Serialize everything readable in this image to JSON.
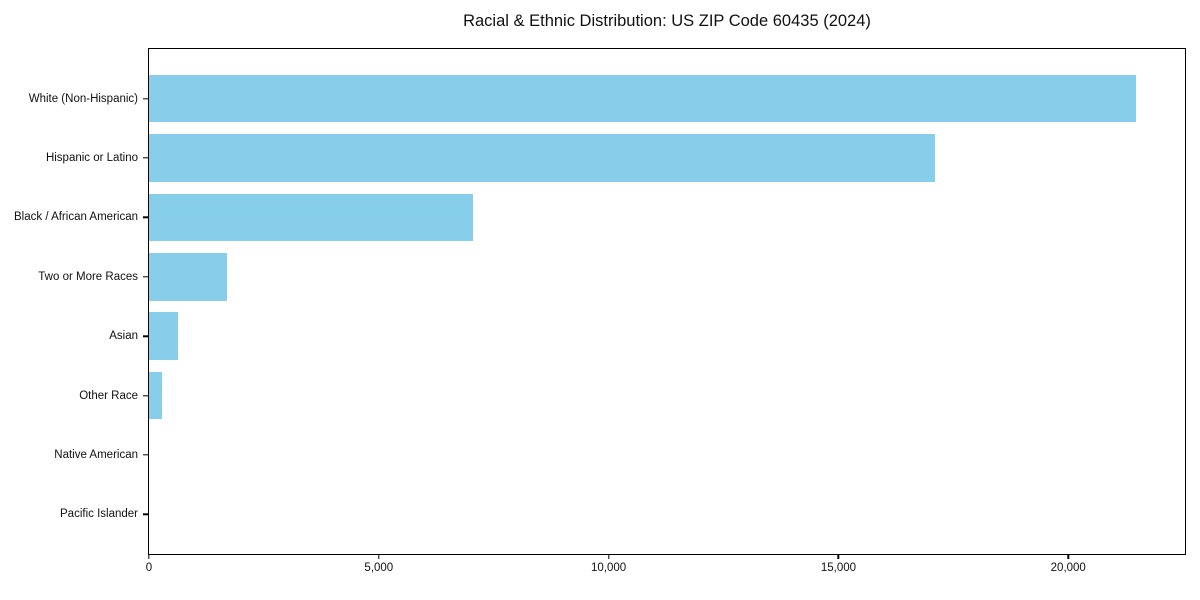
{
  "chart_data": {
    "type": "bar",
    "orientation": "horizontal",
    "title": "Racial & Ethnic Distribution: US ZIP Code 60435 (2024)",
    "categories": [
      "White (Non-Hispanic)",
      "Hispanic or Latino",
      "Black / African American",
      "Two or More Races",
      "Asian",
      "Other Race",
      "Native American",
      "Pacific Islander"
    ],
    "values": [
      21470,
      17090,
      7040,
      1690,
      630,
      280,
      0,
      0
    ],
    "xlabel": "",
    "ylabel": "",
    "xlim": [
      0,
      22540
    ],
    "xticks": [
      0,
      5000,
      10000,
      15000,
      20000
    ],
    "xtick_labels": [
      "0",
      "5,000",
      "10,000",
      "15,000",
      "20,000"
    ],
    "grid": false,
    "legend": null,
    "bar_order": "largest-at-top",
    "colors": {
      "bar": "#87CEEB",
      "axis": "#000000",
      "background": "#ffffff",
      "text": "#111111"
    }
  }
}
